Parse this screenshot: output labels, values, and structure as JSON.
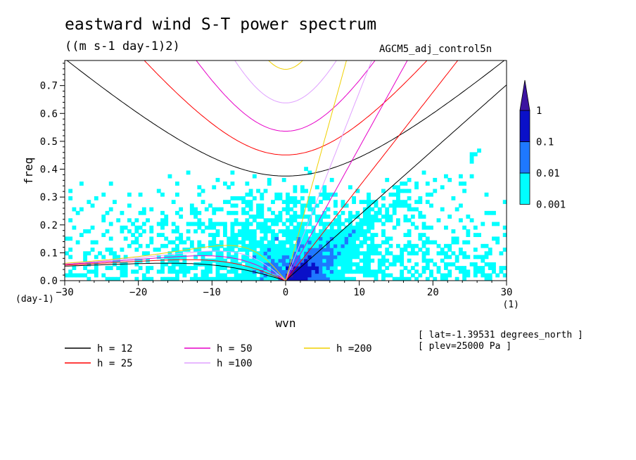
{
  "chart_data": {
    "type": "heatmap",
    "title": "eastward wind S-T power spectrum",
    "units": "((m s-1 day-1)2)",
    "run": "AGCM5_adj_control5n",
    "xlabel": "wvn",
    "ylabel": "freq",
    "x_unit": "(1)",
    "y_unit": "(day-1)",
    "xlim": [
      -30,
      30
    ],
    "ylim": [
      0,
      0.79
    ],
    "xticks": [
      -30,
      -20,
      -10,
      0,
      10,
      20,
      30
    ],
    "yticks": [
      0.0,
      0.1,
      0.2,
      0.3,
      0.4,
      0.5,
      0.6,
      0.7
    ],
    "colorbar": {
      "levels": [
        0.001,
        0.01,
        0.1,
        1
      ],
      "labels": [
        "0.001",
        "0.01",
        "0.1",
        "1"
      ],
      "colors": [
        "#00ffff",
        "#1e78ff",
        "#0a10c8",
        "#3c14a0"
      ]
    },
    "dispersion_curves": [
      {
        "label": "h = 12",
        "h": 12,
        "color": "#000000"
      },
      {
        "label": "h = 25",
        "h": 25,
        "color": "#ff0000"
      },
      {
        "label": "h = 50",
        "h": 50,
        "color": "#e600c8"
      },
      {
        "label": "h =100",
        "h": 100,
        "color": "#e0a0ff"
      },
      {
        "label": "h =200",
        "h": 200,
        "color": "#f0d000"
      }
    ],
    "annotations": [
      "[ lat=-1.39531 degrees_north ]",
      "[ plev=25000 Pa ]"
    ]
  }
}
